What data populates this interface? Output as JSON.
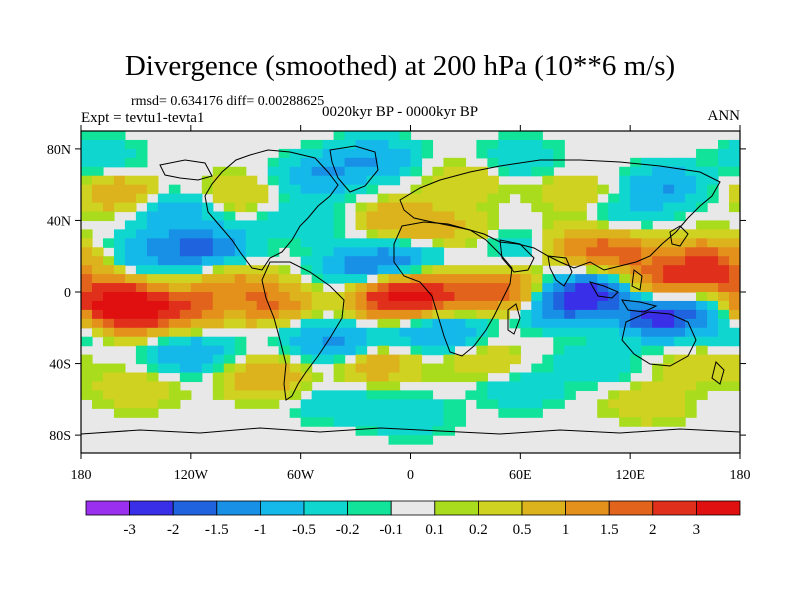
{
  "title": "Divergence (smoothed) at 200 hPa (10**6 m/s)",
  "stats": "rmsd= 0.634176 diff= 0.00288625",
  "experiment": "Expt = tevtu1-tevta1",
  "period": "0020kyr BP - 0000kyr BP",
  "season": "ANN",
  "lat_ticks": [
    {
      "label": "80N",
      "value": 80
    },
    {
      "label": "40N",
      "value": 40
    },
    {
      "label": "0",
      "value": 0
    },
    {
      "label": "40S",
      "value": -40
    },
    {
      "label": "80S",
      "value": -80
    }
  ],
  "lon_ticks": [
    {
      "label": "180",
      "value": -180
    },
    {
      "label": "120W",
      "value": -120
    },
    {
      "label": "60W",
      "value": -60
    },
    {
      "label": "0",
      "value": 0
    },
    {
      "label": "60E",
      "value": 60
    },
    {
      "label": "120E",
      "value": 120
    },
    {
      "label": "180",
      "value": 180
    }
  ],
  "colorbar": {
    "colors": [
      "#9b2ff0",
      "#3a2fe8",
      "#1f63de",
      "#1890e6",
      "#14b9ea",
      "#10d6d0",
      "#12e39a",
      "#e8e8e8",
      "#a8dc1c",
      "#cfd220",
      "#dcb31c",
      "#e4911c",
      "#e2641c",
      "#e0301c",
      "#e01010"
    ],
    "labels": [
      "-3",
      "-2",
      "-1.5",
      "-1",
      "-0.5",
      "-0.2",
      "-0.1",
      "0.1",
      "0.2",
      "0.5",
      "1",
      "1.5",
      "2",
      "3"
    ]
  },
  "field_features": [
    {
      "lon": -160,
      "lat": -5,
      "value": 3
    },
    {
      "lon": -150,
      "lat": -12,
      "value": 2.5
    },
    {
      "lon": -120,
      "lat": -8,
      "value": 1.5
    },
    {
      "lon": -95,
      "lat": 5,
      "value": 1
    },
    {
      "lon": -75,
      "lat": -8,
      "value": 1.5
    },
    {
      "lon": -10,
      "lat": -5,
      "value": 2.5
    },
    {
      "lon": 10,
      "lat": 0,
      "value": 2
    },
    {
      "lon": 50,
      "lat": 0,
      "value": 2
    },
    {
      "lon": -40,
      "lat": -30,
      "value": -1
    },
    {
      "lon": -60,
      "lat": -20,
      "value": -0.5
    },
    {
      "lon": -110,
      "lat": 25,
      "value": -1.5
    },
    {
      "lon": -140,
      "lat": 22,
      "value": -1
    },
    {
      "lon": -30,
      "lat": 15,
      "value": -1
    },
    {
      "lon": -5,
      "lat": 18,
      "value": -1
    },
    {
      "lon": 20,
      "lat": -22,
      "value": -1
    },
    {
      "lon": 80,
      "lat": -8,
      "value": -1.5
    },
    {
      "lon": 100,
      "lat": 0,
      "value": -2
    },
    {
      "lon": 135,
      "lat": -15,
      "value": -2
    },
    {
      "lon": 150,
      "lat": -5,
      "value": -1
    },
    {
      "lon": 115,
      "lat": 22,
      "value": 1.5
    },
    {
      "lon": 140,
      "lat": 5,
      "value": 2
    },
    {
      "lon": 170,
      "lat": 8,
      "value": 1.5
    },
    {
      "lon": 160,
      "lat": 20,
      "value": 1.5
    },
    {
      "lon": 90,
      "lat": 25,
      "value": 1
    },
    {
      "lon": 60,
      "lat": 25,
      "value": -0.5
    },
    {
      "lon": 25,
      "lat": 35,
      "value": 0.5
    },
    {
      "lon": -5,
      "lat": 40,
      "value": 1
    },
    {
      "lon": -60,
      "lat": 40,
      "value": -0.5
    },
    {
      "lon": -130,
      "lat": 45,
      "value": -1
    },
    {
      "lon": -160,
      "lat": 55,
      "value": 1
    },
    {
      "lon": -95,
      "lat": 55,
      "value": 0.5
    },
    {
      "lon": -50,
      "lat": 65,
      "value": -1
    },
    {
      "lon": -20,
      "lat": 75,
      "value": -1
    },
    {
      "lon": 30,
      "lat": 62,
      "value": 0.5
    },
    {
      "lon": 90,
      "lat": 55,
      "value": 0.5
    },
    {
      "lon": 140,
      "lat": 60,
      "value": -1
    },
    {
      "lon": -170,
      "lat": 75,
      "value": -0.5
    },
    {
      "lon": 60,
      "lat": 75,
      "value": -0.5
    },
    {
      "lon": 120,
      "lat": 45,
      "value": -0.5
    },
    {
      "lon": -120,
      "lat": -35,
      "value": -1
    },
    {
      "lon": -80,
      "lat": -48,
      "value": 1
    },
    {
      "lon": -20,
      "lat": -40,
      "value": 1
    },
    {
      "lon": 40,
      "lat": -38,
      "value": 0.5
    },
    {
      "lon": 100,
      "lat": -40,
      "value": -0.5
    },
    {
      "lon": 160,
      "lat": -40,
      "value": 0.5
    },
    {
      "lon": -150,
      "lat": -55,
      "value": 0.5
    },
    {
      "lon": -40,
      "lat": -62,
      "value": -0.5
    },
    {
      "lon": 60,
      "lat": -55,
      "value": -0.5
    },
    {
      "lon": 130,
      "lat": -62,
      "value": 0.5
    },
    {
      "lon": 0,
      "lat": -70,
      "value": -0.5
    },
    {
      "lon": 170,
      "lat": -22,
      "value": -0.5
    },
    {
      "lon": -10,
      "lat": -22,
      "value": -0.5
    }
  ]
}
